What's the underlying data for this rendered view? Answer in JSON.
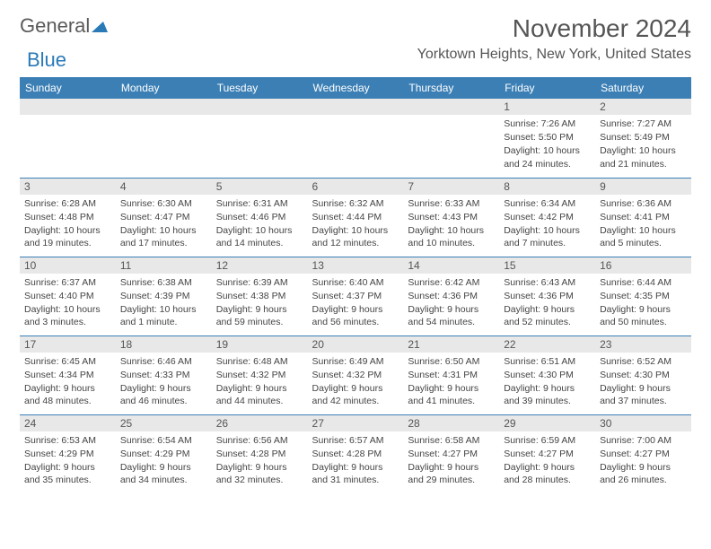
{
  "logo": {
    "part1": "General",
    "part2": "Blue"
  },
  "title": "November 2024",
  "location": "Yorktown Heights, New York, United States",
  "colors": {
    "header_bg": "#3b7fb5",
    "header_text": "#ffffff",
    "cell_border": "#3b7fb5",
    "daynum_bg": "#e8e8e8",
    "text": "#444444",
    "logo_gray": "#5a5a5a",
    "logo_blue": "#2a7ab8"
  },
  "day_headers": [
    "Sunday",
    "Monday",
    "Tuesday",
    "Wednesday",
    "Thursday",
    "Friday",
    "Saturday"
  ],
  "weeks": [
    [
      null,
      null,
      null,
      null,
      null,
      {
        "n": "1",
        "sunrise": "Sunrise: 7:26 AM",
        "sunset": "Sunset: 5:50 PM",
        "daylight": "Daylight: 10 hours and 24 minutes."
      },
      {
        "n": "2",
        "sunrise": "Sunrise: 7:27 AM",
        "sunset": "Sunset: 5:49 PM",
        "daylight": "Daylight: 10 hours and 21 minutes."
      }
    ],
    [
      {
        "n": "3",
        "sunrise": "Sunrise: 6:28 AM",
        "sunset": "Sunset: 4:48 PM",
        "daylight": "Daylight: 10 hours and 19 minutes."
      },
      {
        "n": "4",
        "sunrise": "Sunrise: 6:30 AM",
        "sunset": "Sunset: 4:47 PM",
        "daylight": "Daylight: 10 hours and 17 minutes."
      },
      {
        "n": "5",
        "sunrise": "Sunrise: 6:31 AM",
        "sunset": "Sunset: 4:46 PM",
        "daylight": "Daylight: 10 hours and 14 minutes."
      },
      {
        "n": "6",
        "sunrise": "Sunrise: 6:32 AM",
        "sunset": "Sunset: 4:44 PM",
        "daylight": "Daylight: 10 hours and 12 minutes."
      },
      {
        "n": "7",
        "sunrise": "Sunrise: 6:33 AM",
        "sunset": "Sunset: 4:43 PM",
        "daylight": "Daylight: 10 hours and 10 minutes."
      },
      {
        "n": "8",
        "sunrise": "Sunrise: 6:34 AM",
        "sunset": "Sunset: 4:42 PM",
        "daylight": "Daylight: 10 hours and 7 minutes."
      },
      {
        "n": "9",
        "sunrise": "Sunrise: 6:36 AM",
        "sunset": "Sunset: 4:41 PM",
        "daylight": "Daylight: 10 hours and 5 minutes."
      }
    ],
    [
      {
        "n": "10",
        "sunrise": "Sunrise: 6:37 AM",
        "sunset": "Sunset: 4:40 PM",
        "daylight": "Daylight: 10 hours and 3 minutes."
      },
      {
        "n": "11",
        "sunrise": "Sunrise: 6:38 AM",
        "sunset": "Sunset: 4:39 PM",
        "daylight": "Daylight: 10 hours and 1 minute."
      },
      {
        "n": "12",
        "sunrise": "Sunrise: 6:39 AM",
        "sunset": "Sunset: 4:38 PM",
        "daylight": "Daylight: 9 hours and 59 minutes."
      },
      {
        "n": "13",
        "sunrise": "Sunrise: 6:40 AM",
        "sunset": "Sunset: 4:37 PM",
        "daylight": "Daylight: 9 hours and 56 minutes."
      },
      {
        "n": "14",
        "sunrise": "Sunrise: 6:42 AM",
        "sunset": "Sunset: 4:36 PM",
        "daylight": "Daylight: 9 hours and 54 minutes."
      },
      {
        "n": "15",
        "sunrise": "Sunrise: 6:43 AM",
        "sunset": "Sunset: 4:36 PM",
        "daylight": "Daylight: 9 hours and 52 minutes."
      },
      {
        "n": "16",
        "sunrise": "Sunrise: 6:44 AM",
        "sunset": "Sunset: 4:35 PM",
        "daylight": "Daylight: 9 hours and 50 minutes."
      }
    ],
    [
      {
        "n": "17",
        "sunrise": "Sunrise: 6:45 AM",
        "sunset": "Sunset: 4:34 PM",
        "daylight": "Daylight: 9 hours and 48 minutes."
      },
      {
        "n": "18",
        "sunrise": "Sunrise: 6:46 AM",
        "sunset": "Sunset: 4:33 PM",
        "daylight": "Daylight: 9 hours and 46 minutes."
      },
      {
        "n": "19",
        "sunrise": "Sunrise: 6:48 AM",
        "sunset": "Sunset: 4:32 PM",
        "daylight": "Daylight: 9 hours and 44 minutes."
      },
      {
        "n": "20",
        "sunrise": "Sunrise: 6:49 AM",
        "sunset": "Sunset: 4:32 PM",
        "daylight": "Daylight: 9 hours and 42 minutes."
      },
      {
        "n": "21",
        "sunrise": "Sunrise: 6:50 AM",
        "sunset": "Sunset: 4:31 PM",
        "daylight": "Daylight: 9 hours and 41 minutes."
      },
      {
        "n": "22",
        "sunrise": "Sunrise: 6:51 AM",
        "sunset": "Sunset: 4:30 PM",
        "daylight": "Daylight: 9 hours and 39 minutes."
      },
      {
        "n": "23",
        "sunrise": "Sunrise: 6:52 AM",
        "sunset": "Sunset: 4:30 PM",
        "daylight": "Daylight: 9 hours and 37 minutes."
      }
    ],
    [
      {
        "n": "24",
        "sunrise": "Sunrise: 6:53 AM",
        "sunset": "Sunset: 4:29 PM",
        "daylight": "Daylight: 9 hours and 35 minutes."
      },
      {
        "n": "25",
        "sunrise": "Sunrise: 6:54 AM",
        "sunset": "Sunset: 4:29 PM",
        "daylight": "Daylight: 9 hours and 34 minutes."
      },
      {
        "n": "26",
        "sunrise": "Sunrise: 6:56 AM",
        "sunset": "Sunset: 4:28 PM",
        "daylight": "Daylight: 9 hours and 32 minutes."
      },
      {
        "n": "27",
        "sunrise": "Sunrise: 6:57 AM",
        "sunset": "Sunset: 4:28 PM",
        "daylight": "Daylight: 9 hours and 31 minutes."
      },
      {
        "n": "28",
        "sunrise": "Sunrise: 6:58 AM",
        "sunset": "Sunset: 4:27 PM",
        "daylight": "Daylight: 9 hours and 29 minutes."
      },
      {
        "n": "29",
        "sunrise": "Sunrise: 6:59 AM",
        "sunset": "Sunset: 4:27 PM",
        "daylight": "Daylight: 9 hours and 28 minutes."
      },
      {
        "n": "30",
        "sunrise": "Sunrise: 7:00 AM",
        "sunset": "Sunset: 4:27 PM",
        "daylight": "Daylight: 9 hours and 26 minutes."
      }
    ]
  ]
}
